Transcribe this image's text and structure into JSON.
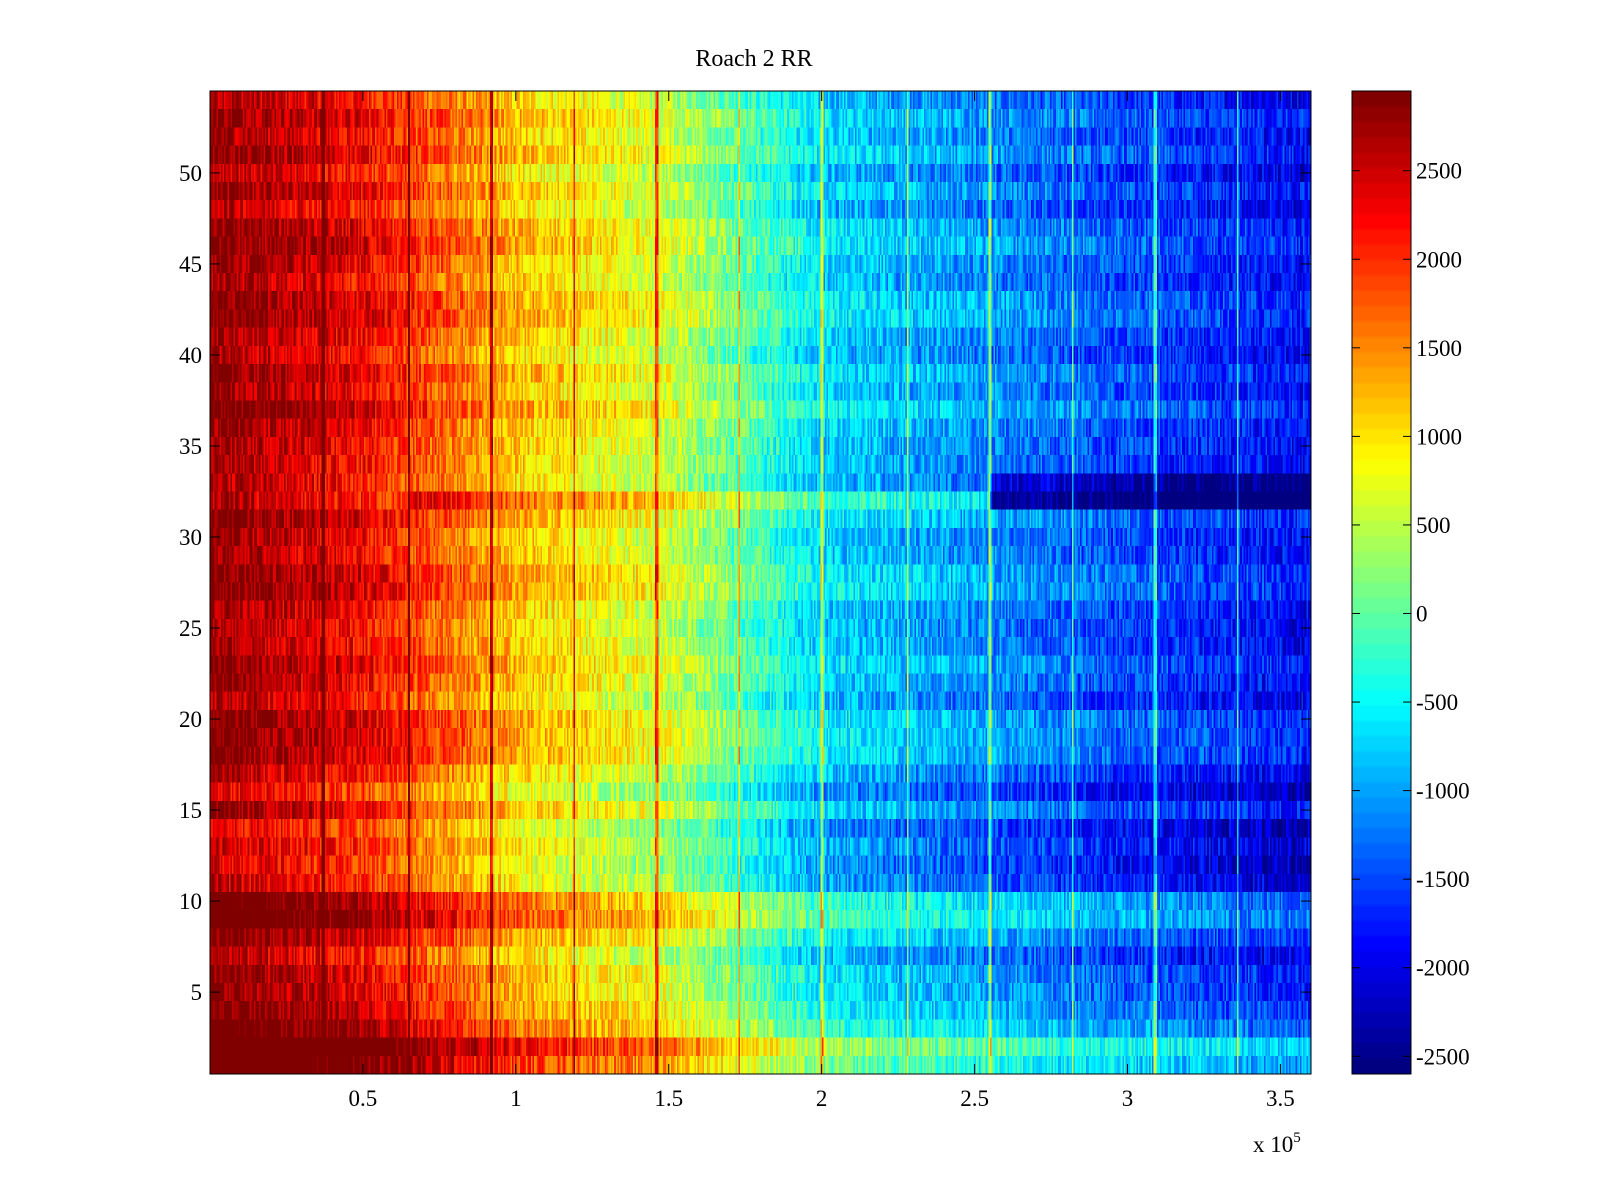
{
  "chart_data": {
    "type": "heatmap",
    "title": "Roach 2 RR",
    "xlabel": "",
    "ylabel": "",
    "x_multiplier_label": "x 10",
    "x_multiplier_exponent": "5",
    "xlim": [
      0,
      360000
    ],
    "ylim": [
      0.5,
      54.5
    ],
    "x_ticks": [
      50000,
      100000,
      150000,
      200000,
      250000,
      300000,
      350000
    ],
    "x_tick_labels": [
      "0.5",
      "1",
      "1.5",
      "2",
      "2.5",
      "3",
      "3.5"
    ],
    "y_ticks": [
      5,
      10,
      15,
      20,
      25,
      30,
      35,
      40,
      45,
      50
    ],
    "y_tick_labels": [
      "5",
      "10",
      "15",
      "20",
      "25",
      "30",
      "35",
      "40",
      "45",
      "50"
    ],
    "colorbar": {
      "colormap": "jet",
      "range": [
        -2600,
        2950
      ],
      "ticks": [
        2500,
        2000,
        1500,
        1000,
        500,
        0,
        -500,
        -1000,
        -1500,
        -2000,
        -2500
      ],
      "tick_labels": [
        "2500",
        "2000",
        "1500",
        "1000",
        "500",
        "0",
        "-500",
        "-1000",
        "-1500",
        "-2000",
        "-2500"
      ]
    },
    "grid": false,
    "rows": 54,
    "trend": {
      "description_values_at_x": [
        {
          "x": 0,
          "value": 2900
        },
        {
          "x": 50000,
          "value": 2300
        },
        {
          "x": 100000,
          "value": 1200
        },
        {
          "x": 150000,
          "value": 600
        },
        {
          "x": 200000,
          "value": -700
        },
        {
          "x": 250000,
          "value": -1100
        },
        {
          "x": 300000,
          "value": -1500
        },
        {
          "x": 360000,
          "value": -1900
        }
      ]
    },
    "hot_stripes_x": [
      37000,
      65000,
      92000,
      119000,
      146000,
      173000,
      200000,
      228000,
      255000,
      282000,
      309000,
      336000
    ],
    "anomalous_rows": [
      {
        "row": 1,
        "offset": 700
      },
      {
        "row": 2,
        "offset": 1200
      },
      {
        "row": 3,
        "offset": 400
      },
      {
        "row": 9,
        "offset": 500
      },
      {
        "row": 10,
        "offset": 300
      },
      {
        "row": 11,
        "offset": -400
      },
      {
        "row": 12,
        "offset": -300
      },
      {
        "row": 13,
        "offset": -400
      },
      {
        "row": 14,
        "offset": -300
      },
      {
        "row": 16,
        "offset": -300
      },
      {
        "row": 32,
        "offset": 700,
        "x_range": [
          65000,
          255000
        ]
      },
      {
        "row": 32,
        "offset": -1100,
        "x_range": [
          255000,
          360000
        ]
      },
      {
        "row": 33,
        "offset": -700,
        "x_range": [
          255000,
          360000
        ]
      }
    ]
  }
}
